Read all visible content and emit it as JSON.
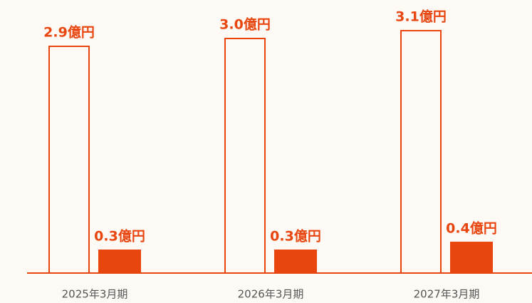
{
  "chart_data": {
    "type": "bar",
    "categories": [
      "2025年3月期",
      "2026年3月期",
      "2027年3月期"
    ],
    "series": [
      {
        "color": "#e8450f",
        "filled": false,
        "values": [
          2.9,
          3.0,
          3.1
        ],
        "value_labels": [
          "2.9億円",
          "3.0億円",
          "3.1億円"
        ]
      },
      {
        "color": "#e8450f",
        "filled": true,
        "values": [
          0.3,
          0.3,
          0.4
        ],
        "value_labels": [
          "0.3億円",
          "0.3億円",
          "0.4億円"
        ]
      }
    ]
  }
}
